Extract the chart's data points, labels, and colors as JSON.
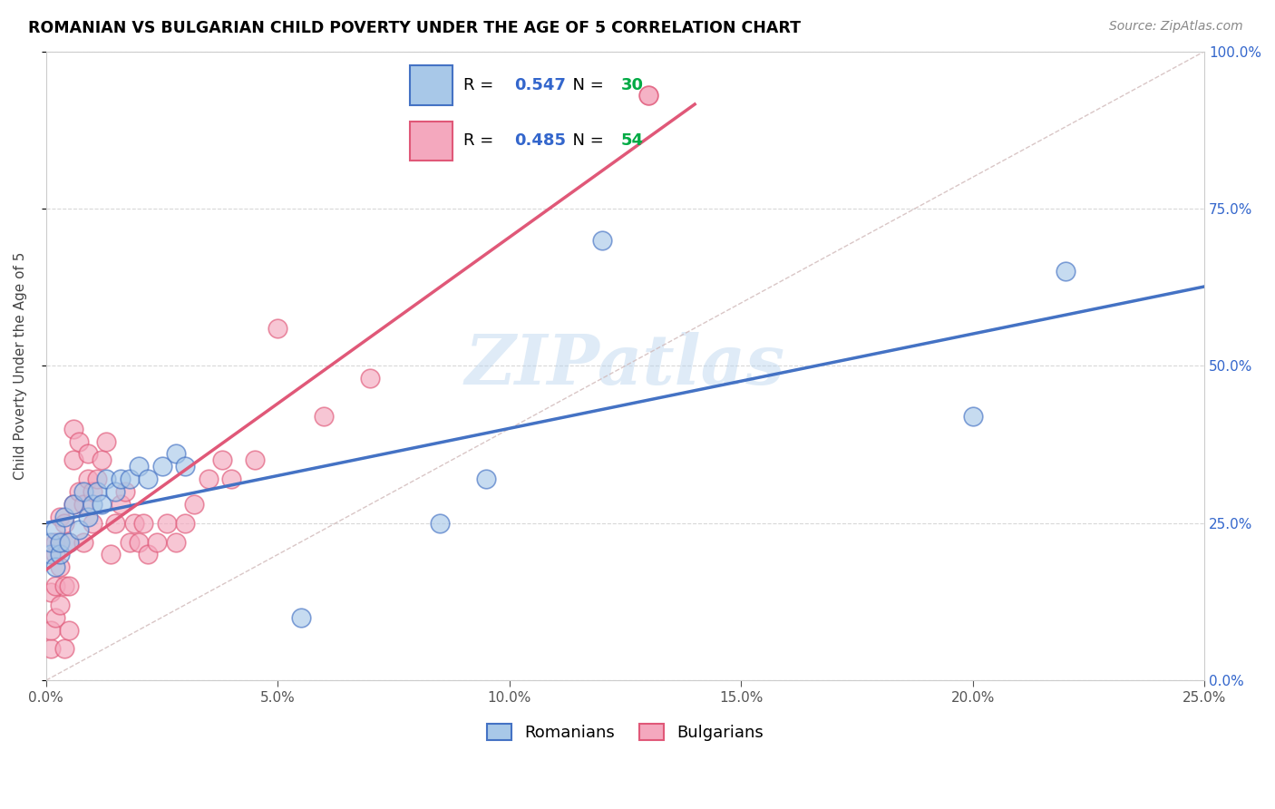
{
  "title": "ROMANIAN VS BULGARIAN CHILD POVERTY UNDER THE AGE OF 5 CORRELATION CHART",
  "source": "Source: ZipAtlas.com",
  "ylabel": "Child Poverty Under the Age of 5",
  "legend_label1": "Romanians",
  "legend_label2": "Bulgarians",
  "R1": 0.547,
  "N1": 30,
  "R2": 0.485,
  "N2": 54,
  "xlim": [
    0.0,
    0.25
  ],
  "ylim": [
    0.0,
    1.0
  ],
  "xticks": [
    0.0,
    0.05,
    0.1,
    0.15,
    0.2,
    0.25
  ],
  "yticks": [
    0.0,
    0.25,
    0.5,
    0.75,
    1.0
  ],
  "color_romanian": "#a8c8e8",
  "color_bulgarian": "#f4a8be",
  "color_romanian_line": "#4472c4",
  "color_bulgarian_line": "#e05878",
  "watermark": "ZIPatlas",
  "romanians_x": [
    0.001,
    0.001,
    0.002,
    0.002,
    0.003,
    0.003,
    0.004,
    0.005,
    0.006,
    0.007,
    0.008,
    0.009,
    0.01,
    0.011,
    0.012,
    0.013,
    0.015,
    0.016,
    0.018,
    0.02,
    0.022,
    0.025,
    0.028,
    0.03,
    0.055,
    0.085,
    0.095,
    0.12,
    0.2,
    0.22
  ],
  "romanians_y": [
    0.2,
    0.22,
    0.18,
    0.24,
    0.2,
    0.22,
    0.26,
    0.22,
    0.28,
    0.24,
    0.3,
    0.26,
    0.28,
    0.3,
    0.28,
    0.32,
    0.3,
    0.32,
    0.32,
    0.34,
    0.32,
    0.34,
    0.36,
    0.34,
    0.1,
    0.25,
    0.32,
    0.7,
    0.42,
    0.65
  ],
  "bulgarians_x": [
    0.001,
    0.001,
    0.001,
    0.002,
    0.002,
    0.002,
    0.002,
    0.003,
    0.003,
    0.003,
    0.003,
    0.004,
    0.004,
    0.004,
    0.005,
    0.005,
    0.005,
    0.006,
    0.006,
    0.006,
    0.007,
    0.007,
    0.008,
    0.008,
    0.009,
    0.009,
    0.01,
    0.01,
    0.011,
    0.012,
    0.013,
    0.014,
    0.015,
    0.016,
    0.017,
    0.018,
    0.019,
    0.02,
    0.021,
    0.022,
    0.024,
    0.026,
    0.028,
    0.03,
    0.032,
    0.035,
    0.038,
    0.04,
    0.045,
    0.05,
    0.06,
    0.07,
    0.13,
    0.13
  ],
  "bulgarians_y": [
    0.05,
    0.08,
    0.14,
    0.1,
    0.15,
    0.2,
    0.22,
    0.12,
    0.18,
    0.22,
    0.26,
    0.05,
    0.15,
    0.25,
    0.08,
    0.15,
    0.22,
    0.28,
    0.35,
    0.4,
    0.3,
    0.38,
    0.22,
    0.28,
    0.32,
    0.36,
    0.25,
    0.3,
    0.32,
    0.35,
    0.38,
    0.2,
    0.25,
    0.28,
    0.3,
    0.22,
    0.25,
    0.22,
    0.25,
    0.2,
    0.22,
    0.25,
    0.22,
    0.25,
    0.28,
    0.32,
    0.35,
    0.32,
    0.35,
    0.56,
    0.42,
    0.48,
    0.93,
    0.93
  ],
  "diag_color": "#d0b8b8"
}
